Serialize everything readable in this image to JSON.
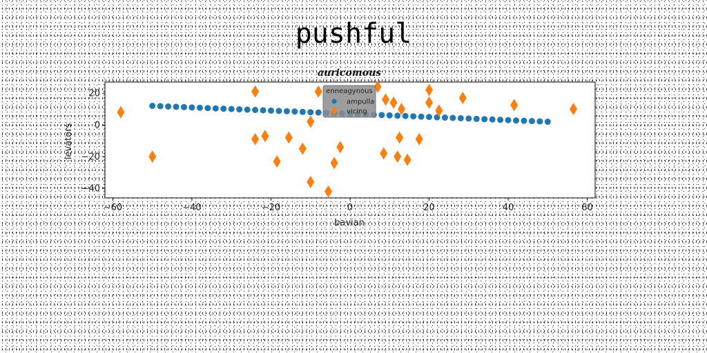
{
  "page": {
    "suptitle": "pushful"
  },
  "chart_data": {
    "type": "scatter",
    "title": "auricomous",
    "xlabel": "bavian",
    "ylabel": "levators",
    "xlim": [
      -62,
      62
    ],
    "ylim": [
      -46,
      27
    ],
    "xticks": [
      -60,
      -40,
      -20,
      0,
      20,
      40,
      60
    ],
    "yticks": [
      -40,
      -20,
      0,
      20
    ],
    "grid": false,
    "legend": {
      "title": "enneagynous",
      "placement": "top-center"
    },
    "series": [
      {
        "name": "ampulla",
        "marker": "circle",
        "color": "#1f77b4",
        "x": [
          -50,
          -48,
          -46,
          -44,
          -42,
          -40,
          -38,
          -36,
          -34,
          -32,
          -30,
          -28,
          -26,
          -24,
          -22,
          -20,
          -18,
          -16,
          -14,
          -12,
          -10,
          -8,
          -6,
          -4,
          -2,
          0,
          2,
          4,
          6,
          8,
          10,
          12,
          14,
          16,
          18,
          20,
          22,
          24,
          26,
          28,
          30,
          32,
          34,
          36,
          38,
          40,
          42,
          44,
          46,
          48,
          50
        ],
        "y": [
          12,
          11.8,
          11.6,
          11.4,
          11.2,
          11,
          10.8,
          10.6,
          10.4,
          10.2,
          10,
          9.8,
          9.6,
          9.4,
          9.2,
          9,
          8.8,
          8.6,
          8.4,
          8.2,
          8,
          7.8,
          7.6,
          7.4,
          7.2,
          7,
          6.8,
          6.6,
          6.4,
          6.2,
          6,
          5.8,
          5.6,
          5.4,
          5.2,
          5,
          4.8,
          4.6,
          4.4,
          4.2,
          4,
          3.8,
          3.6,
          3.4,
          3.2,
          3,
          2.8,
          2.6,
          2.4,
          2.2,
          2
        ]
      },
      {
        "name": "vicing",
        "marker": "thin_diamond",
        "color": "#ff7f0e",
        "x": [
          -58,
          -50,
          -24,
          -24,
          -21.5,
          -18.5,
          -15.5,
          -12,
          -10,
          -10,
          -8,
          -5.5,
          -4,
          -2.5,
          7,
          8.5,
          9,
          11,
          12,
          12.5,
          13,
          14.5,
          17.5,
          20,
          20,
          22.5,
          28.5,
          41.5,
          56.5
        ],
        "y": [
          8,
          -20,
          21,
          -9,
          -7,
          -23,
          -8,
          -15,
          2,
          -36,
          21,
          -42,
          -24,
          -14,
          24,
          -18,
          16,
          14,
          -20,
          -8,
          10,
          -22,
          -9,
          22,
          14,
          9,
          17,
          12.5,
          10
        ]
      }
    ]
  }
}
